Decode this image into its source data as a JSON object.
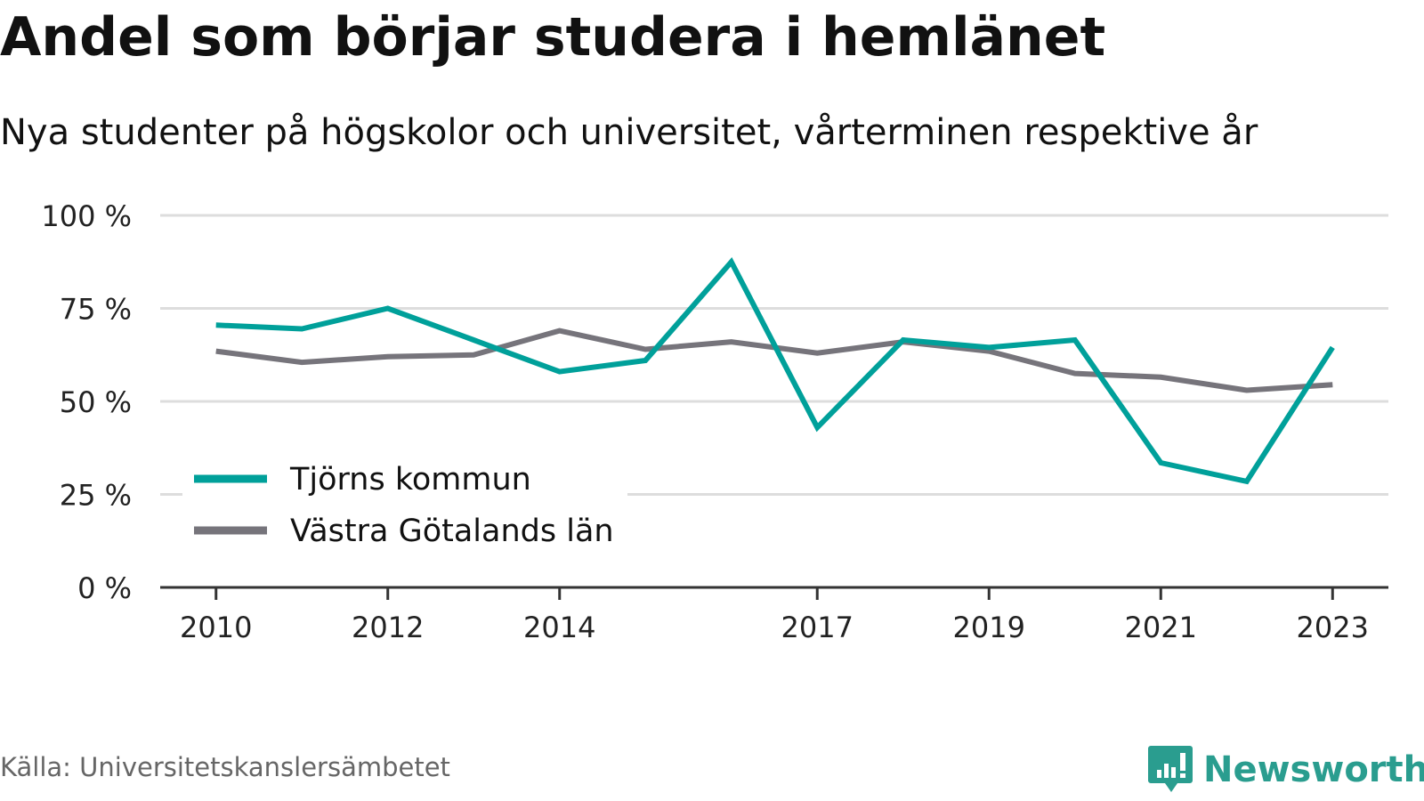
{
  "chart_data": {
    "type": "line",
    "title": "Andel som börjar studera i hemlänet",
    "subtitle": "Nya studenter på högskolor och universitet, vårterminen respektive år",
    "x": [
      2010,
      2011,
      2012,
      2013,
      2014,
      2015,
      2016,
      2017,
      2018,
      2019,
      2020,
      2021,
      2022,
      2023
    ],
    "x_tick_values": [
      2010,
      2012,
      2014,
      2017,
      2019,
      2021,
      2023
    ],
    "x_tick_labels": [
      "2010",
      "2012",
      "2014",
      "2017",
      "2019",
      "2021",
      "2023"
    ],
    "y_tick_values": [
      0,
      25,
      50,
      75,
      100
    ],
    "y_tick_labels": [
      "0 %",
      "25 %",
      "50 %",
      "75 %",
      "100 %"
    ],
    "ylim": [
      0,
      100
    ],
    "xlim": [
      2009.35,
      2023.65
    ],
    "grid": true,
    "legend_position": "bottom-left",
    "series": [
      {
        "name": "Tjörns kommun",
        "color": "#00a09a",
        "values": [
          70.5,
          69.5,
          75,
          66.5,
          58,
          61,
          87.5,
          43,
          66.5,
          64.5,
          66.5,
          33.5,
          28.5,
          64.5
        ]
      },
      {
        "name": "Västra Götalands län",
        "color": "#76747b",
        "values": [
          63.5,
          60.5,
          62,
          62.5,
          69,
          64,
          66,
          63,
          66,
          63.5,
          57.5,
          56.5,
          53,
          54.5
        ]
      }
    ]
  },
  "source": "Källa: Universitetskanslersämbetet",
  "brand": {
    "name": "Newsworthy",
    "color": "#2a9d8f"
  },
  "colors": {
    "gridline": "#dddddd",
    "axis": "#333333"
  }
}
